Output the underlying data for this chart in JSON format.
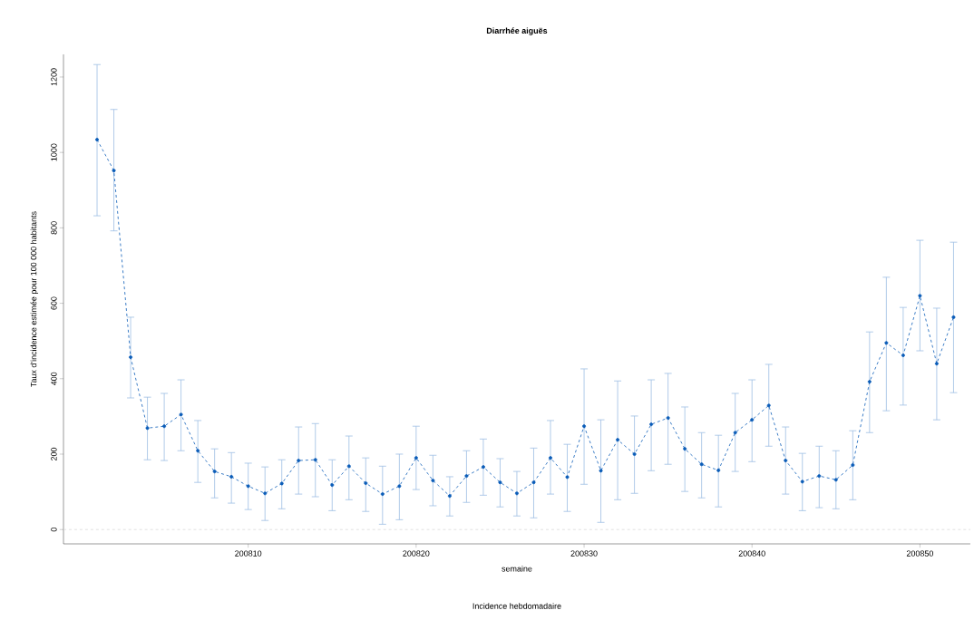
{
  "chart_data": {
    "type": "line",
    "title": "Diarrhée aiguës",
    "xlabel": "semaine",
    "ylabel": "Taux d'incidence estimée pour 100 000 habitants",
    "annotations": [
      "Incidence hebdomadaire"
    ],
    "x": [
      200801,
      200802,
      200803,
      200804,
      200805,
      200806,
      200807,
      200808,
      200809,
      200810,
      200811,
      200812,
      200813,
      200814,
      200815,
      200816,
      200817,
      200818,
      200819,
      200820,
      200821,
      200822,
      200823,
      200824,
      200825,
      200826,
      200827,
      200828,
      200829,
      200830,
      200831,
      200832,
      200833,
      200834,
      200835,
      200836,
      200837,
      200838,
      200839,
      200840,
      200841,
      200842,
      200843,
      200844,
      200845,
      200846,
      200847,
      200848,
      200849,
      200850,
      200851,
      200852
    ],
    "series": [
      {
        "color": "#0a5cb8",
        "values": [
          1034,
          952,
          457,
          269,
          274,
          305,
          209,
          154,
          140,
          115,
          96,
          122,
          183,
          185,
          118,
          168,
          123,
          94,
          115,
          190,
          130,
          89,
          142,
          166,
          125,
          96,
          125,
          190,
          139,
          274,
          156,
          238,
          200,
          279,
          296,
          214,
          173,
          157,
          257,
          291,
          329,
          183,
          127,
          142,
          132,
          171,
          392,
          495,
          462,
          620,
          440,
          563
        ],
        "errors": [
          [
            832,
            1233
          ],
          [
            792,
            1114
          ],
          [
            349,
            563
          ],
          [
            185,
            351
          ],
          [
            183,
            361
          ],
          [
            209,
            397
          ],
          [
            125,
            289
          ],
          [
            84,
            214
          ],
          [
            70,
            204
          ],
          [
            53,
            176
          ],
          [
            24,
            166
          ],
          [
            55,
            185
          ],
          [
            94,
            272
          ],
          [
            87,
            281
          ],
          [
            50,
            185
          ],
          [
            79,
            248
          ],
          [
            48,
            190
          ],
          [
            14,
            168
          ],
          [
            26,
            200
          ],
          [
            106,
            274
          ],
          [
            63,
            197
          ],
          [
            36,
            140
          ],
          [
            72,
            209
          ],
          [
            91,
            240
          ],
          [
            60,
            188
          ],
          [
            36,
            154
          ],
          [
            31,
            216
          ],
          [
            94,
            289
          ],
          [
            48,
            226
          ],
          [
            120,
            426
          ],
          [
            19,
            291
          ],
          [
            79,
            394
          ],
          [
            96,
            301
          ],
          [
            156,
            397
          ],
          [
            173,
            414
          ],
          [
            101,
            325
          ],
          [
            84,
            257
          ],
          [
            60,
            250
          ],
          [
            154,
            361
          ],
          [
            180,
            397
          ],
          [
            221,
            438
          ],
          [
            94,
            272
          ],
          [
            50,
            202
          ],
          [
            58,
            221
          ],
          [
            55,
            209
          ],
          [
            79,
            262
          ],
          [
            257,
            524
          ],
          [
            315,
            669
          ],
          [
            330,
            589
          ],
          [
            474,
            767
          ],
          [
            291,
            587
          ],
          [
            363,
            762
          ]
        ]
      }
    ],
    "xlim": [
      200799,
      200853
    ],
    "ylim": [
      -38,
      1260
    ],
    "xticks": [
      200810,
      200820,
      200830,
      200840,
      200850
    ],
    "yticks": [
      0,
      200,
      400,
      600,
      800,
      1000,
      1200
    ],
    "ref_lines": [
      {
        "axis": "y",
        "value": 0,
        "color": "#d9d9d9",
        "line_style": "dashed"
      }
    ],
    "grid": false,
    "marker": "circle",
    "line_style": "dashed"
  }
}
